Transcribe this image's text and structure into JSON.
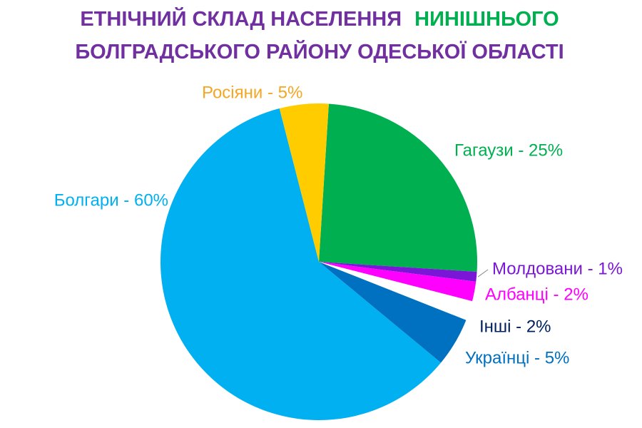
{
  "chart_data": {
    "type": "pie",
    "title": [
      "ЕТНІЧНИЙ СКЛАД НАСЕЛЕННЯ",
      "НИНІШНЬОГО",
      "БОЛГРАДСЬКОГО РАЙОНУ ОДЕСЬКОЇ ОБЛАСТІ"
    ],
    "title_colors": [
      "#7030a0",
      "#00b050",
      "#7030a0"
    ],
    "values": [
      25,
      1,
      2,
      2,
      5,
      60,
      5
    ],
    "value_labels": [
      "Гагаузи - 25%",
      "Молдовани - 1%",
      "Албанці - 2%",
      "Інші - 2%",
      "Українці - 5%",
      "Болгари - 60%",
      "Росіяни - 5%"
    ],
    "colors": [
      "#00b050",
      "#7a16d6",
      "#ff00ff",
      "#ffffff",
      "#0070c0",
      "#00b0f0",
      "#ffcc00"
    ],
    "label_colors": [
      "#00b050",
      "#7a16d6",
      "#ff00ff",
      "#002060",
      "#0070c0",
      "#00b0f0",
      "#f5a623"
    ]
  }
}
